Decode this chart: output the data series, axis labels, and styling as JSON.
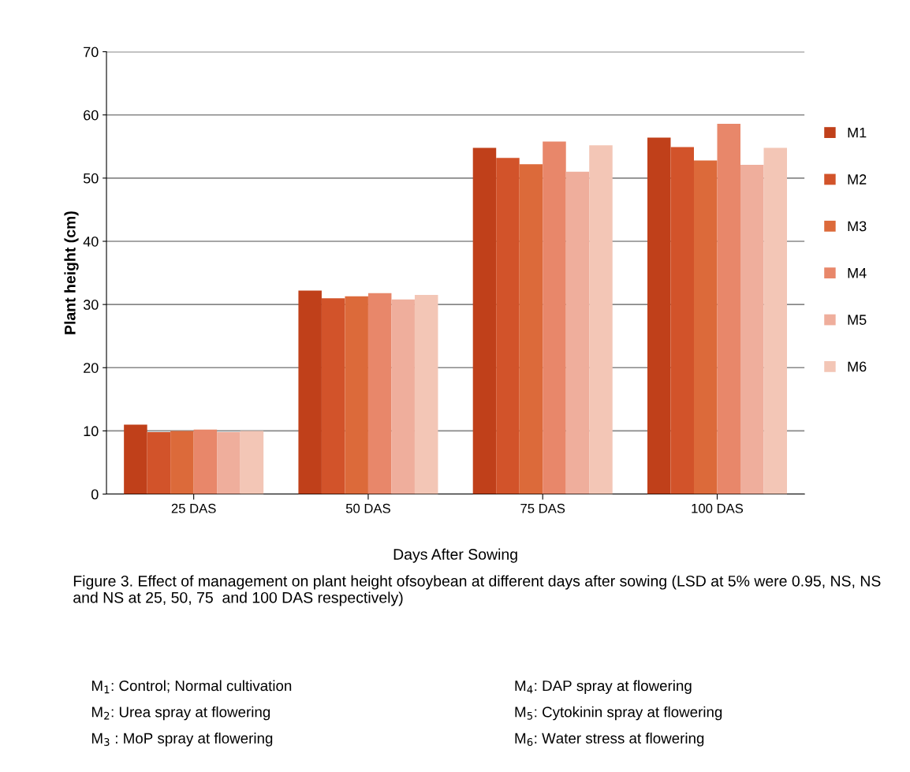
{
  "chart_data": {
    "type": "bar",
    "xlabel": "Days After Sowing",
    "ylabel": "Plant height (cm)",
    "categories": [
      "25 DAS",
      "50 DAS",
      "75 DAS",
      "100 DAS"
    ],
    "series": [
      {
        "name": "M1",
        "color": "#c0401a",
        "values": [
          11.0,
          32.2,
          54.8,
          56.4
        ]
      },
      {
        "name": "M2",
        "color": "#d2532a",
        "values": [
          9.8,
          31.0,
          53.2,
          54.9
        ]
      },
      {
        "name": "M3",
        "color": "#dc6a3a",
        "values": [
          10.0,
          31.3,
          52.2,
          52.8
        ]
      },
      {
        "name": "M4",
        "color": "#e8876a",
        "values": [
          10.2,
          31.8,
          55.8,
          58.6
        ]
      },
      {
        "name": "M5",
        "color": "#efae9c",
        "values": [
          9.8,
          30.8,
          51.0,
          52.1
        ]
      },
      {
        "name": "M6",
        "color": "#f3c6b6",
        "values": [
          10.0,
          31.5,
          55.2,
          54.8
        ]
      }
    ],
    "ylim": [
      0,
      70
    ],
    "yticks": [
      0,
      10,
      20,
      30,
      40,
      50,
      60,
      70
    ],
    "grid": "y",
    "legend": "right",
    "annotations": [
      "Figure 3. Effect of management on plant height ofsoybean at different days after sowing (LSD at 5% were 0.95, NS, NS and NS at 25, 50, 75  and 100 DAS respectively)",
      "M$_{1}$: Control; Normal cultivation",
      "M$_{2}$: Urea spray at flowering",
      "M$_{3}$ : MoP spray at flowering",
      "M$_{4}$: DAP spray at flowering",
      "M$_{5}$: Cytokinin spray at flowering",
      "M$_{6}$: Water stress at flowering"
    ]
  }
}
